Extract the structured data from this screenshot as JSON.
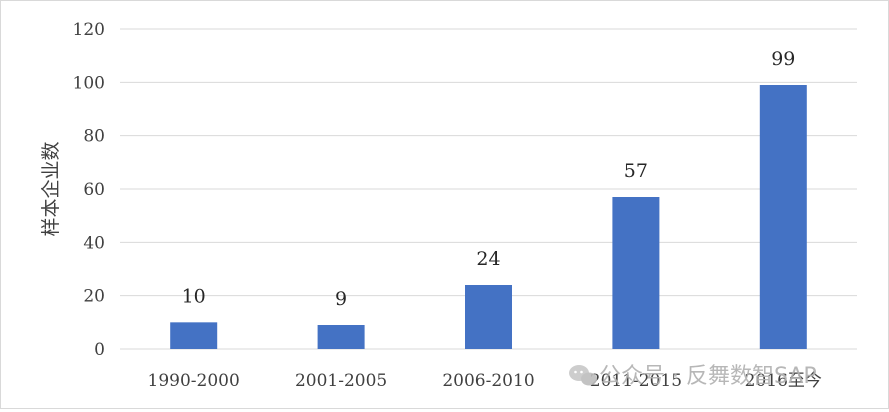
{
  "chart_data": {
    "type": "bar",
    "categories": [
      "1990-2000",
      "2001-2005",
      "2006-2010",
      "2011-2015",
      "2016至今"
    ],
    "values": [
      10,
      9,
      24,
      57,
      99
    ],
    "title": "",
    "xlabel": "",
    "ylabel": "样本企业数",
    "ylim": [
      0,
      120
    ],
    "yticks": [
      0,
      20,
      40,
      60,
      80,
      100,
      120
    ],
    "grid": true,
    "legend": "none",
    "data_labels": true,
    "colors": {
      "bar": "#4472C4",
      "grid": "#d9d9d9",
      "text": "#404040"
    }
  },
  "watermark": {
    "text": "公众号 · 反舞数智SAP",
    "icon": "wechat-icon"
  }
}
